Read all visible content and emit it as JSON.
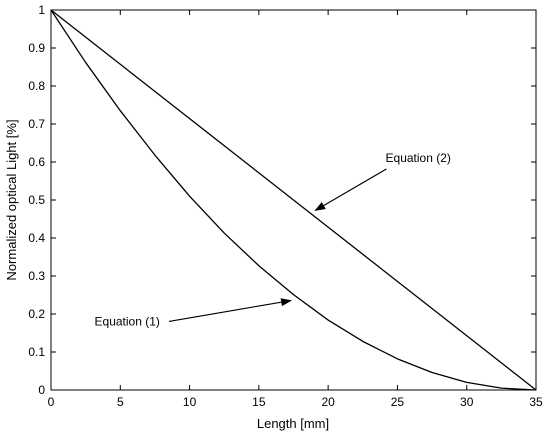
{
  "chart_data": {
    "type": "line",
    "title": "",
    "xlabel": "Length [mm]",
    "ylabel": "Normalized optical Light [%]",
    "xlim": [
      0,
      35
    ],
    "ylim": [
      0,
      1
    ],
    "xticks": [
      0,
      5,
      10,
      15,
      20,
      25,
      30,
      35
    ],
    "yticks": [
      0,
      0.1,
      0.2,
      0.3,
      0.4,
      0.5,
      0.6,
      0.7,
      0.8,
      0.9,
      1
    ],
    "grid": false,
    "legend": null,
    "series": [
      {
        "x": [
          0,
          2.5,
          5,
          7.5,
          10,
          12.5,
          15,
          17.5,
          20,
          22.5,
          25,
          27.5,
          30,
          32.5,
          35
        ],
        "y": [
          1,
          0.862,
          0.735,
          0.618,
          0.51,
          0.413,
          0.327,
          0.251,
          0.184,
          0.128,
          0.082,
          0.046,
          0.02,
          0.005,
          0
        ],
        "color": "#000000"
      },
      {
        "x": [
          0,
          35
        ],
        "y": [
          1,
          0
        ],
        "color": "#000000"
      }
    ],
    "annotations": [
      {
        "text": "Equation (1)",
        "text_at": [
          5.5,
          0.17
        ],
        "arrow_to": [
          17.4,
          0.236
        ]
      },
      {
        "text": "Equation (2)",
        "text_at": [
          26.5,
          0.6
        ],
        "arrow_to": [
          19.0,
          0.471
        ]
      }
    ]
  }
}
